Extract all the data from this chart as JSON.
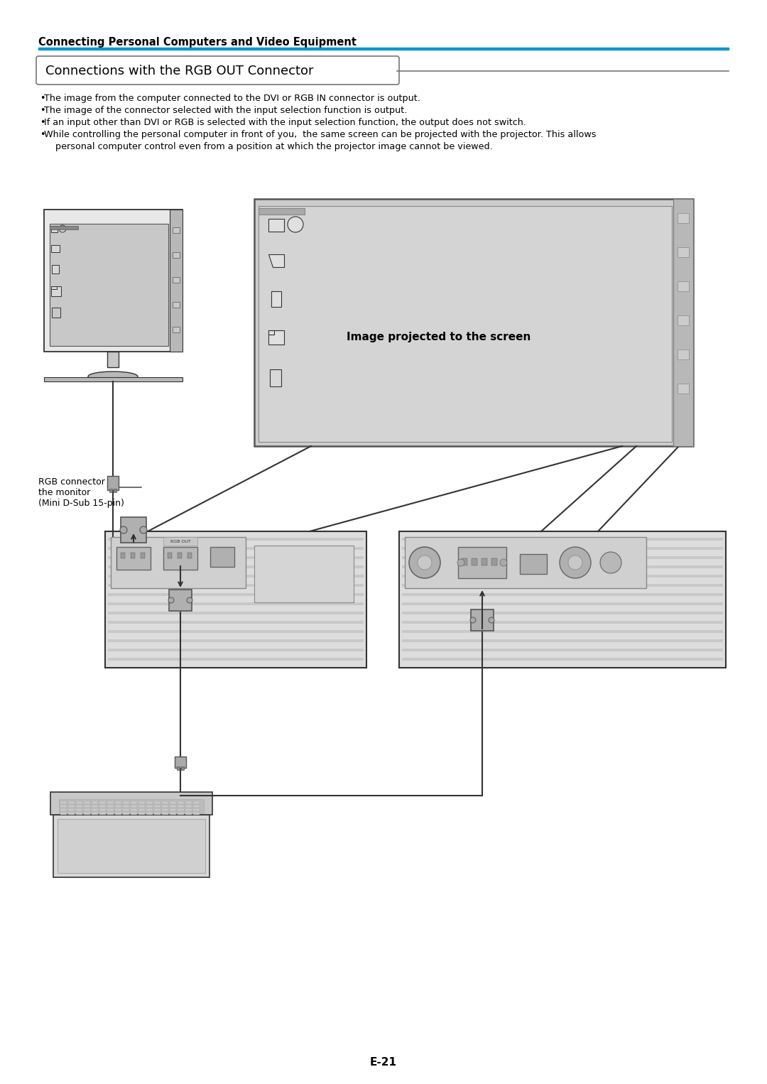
{
  "bg_color": "#ffffff",
  "header_text": "Connecting Personal Computers and Video Equipment",
  "header_line_color": "#0099cc",
  "section_title": "Connections with the RGB OUT Connector",
  "bullet1": "The image from the computer connected to the DVI or RGB IN connector is output.",
  "bullet2": "The image of the connector selected with the input selection function is output.",
  "bullet3": "If an input other than DVI or RGB is selected with the input selection function, the output does not switch.",
  "bullet4a": "While controlling the personal computer in front of you,  the same screen can be projected with the projector. This allows",
  "bullet4b": "personal computer control even from a position at which the projector image cannot be viewed.",
  "label_rgb_connector": "RGB connector of\nthe monitor\n(Mini D-Sub 15-pin)",
  "label_projected": "Image projected to the screen",
  "page_number": "E-21",
  "lc": "#333333",
  "lc2": "#555555",
  "gray1": "#e8e8e8",
  "gray2": "#d8d8d8",
  "gray3": "#c8c8c8",
  "gray4": "#b8b8b8",
  "gray5": "#a0a0a0",
  "gray6": "#888888",
  "gray7": "#707070",
  "white": "#ffffff"
}
